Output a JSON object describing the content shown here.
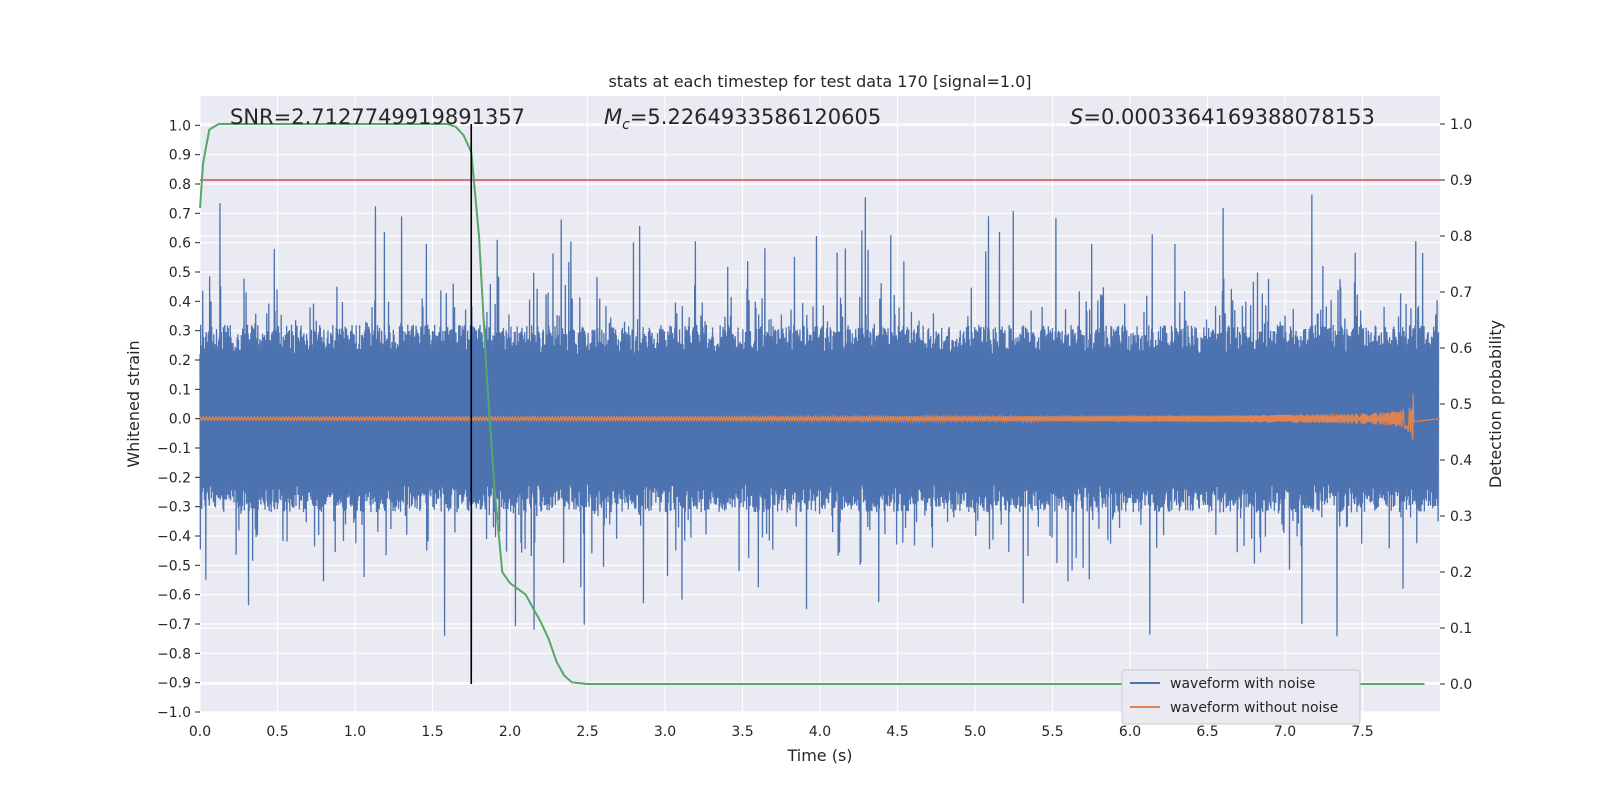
{
  "chart_data": {
    "type": "line",
    "title": "stats at each timestep for test data 170 [signal=1.0]",
    "xlabel": "Time (s)",
    "ylabel": "Whitened strain",
    "y2label": "Detection probability",
    "xlim": [
      0.0,
      8.0
    ],
    "ylim": [
      -1.0,
      1.1
    ],
    "y2lim": [
      -0.05,
      1.05
    ],
    "grid": true,
    "legend_position": "bottom-right",
    "x_ticks": [
      "0.0",
      "0.5",
      "1.0",
      "1.5",
      "2.0",
      "2.5",
      "3.0",
      "3.5",
      "4.0",
      "4.5",
      "5.0",
      "5.5",
      "6.0",
      "6.5",
      "7.0",
      "7.5"
    ],
    "y_ticks": [
      "1.0",
      "0.9",
      "0.8",
      "0.7",
      "0.6",
      "0.5",
      "0.4",
      "0.3",
      "0.2",
      "0.1",
      "0.0",
      "−0.1",
      "−0.2",
      "−0.3",
      "−0.4",
      "−0.5",
      "−0.6",
      "−0.7",
      "−0.8",
      "−0.9",
      "−1.0"
    ],
    "y2_ticks": [
      "1.0",
      "0.9",
      "0.8",
      "0.7",
      "0.6",
      "0.5",
      "0.4",
      "0.3",
      "0.2",
      "0.1",
      "0.0"
    ],
    "annotations": {
      "snr": "SNR=2.7127749919891357",
      "mc": "=5.2264933586120605",
      "s": "=0.0003364169388078153"
    },
    "threshold_y2": 0.9,
    "marker_time": 1.75,
    "series": [
      {
        "name": "waveform with noise",
        "color": "#4c72b0",
        "noise_envelope": [
          -1.0,
          1.0
        ],
        "end_time": 7.99
      },
      {
        "name": "waveform without noise",
        "color": "#dd8452",
        "start_amplitude": 0.006,
        "peak_amplitude": 0.1,
        "peak_time": 7.83,
        "end_time": 7.83
      },
      {
        "color": "#55a868",
        "axis": "y2",
        "x": [
          0.0,
          0.02,
          0.06,
          0.12,
          0.3,
          0.6,
          1.0,
          1.4,
          1.6,
          1.65,
          1.7,
          1.75,
          1.8,
          1.85,
          1.9,
          1.95,
          2.0,
          2.1,
          2.2,
          2.25,
          2.3,
          2.35,
          2.4,
          2.5,
          3.0,
          7.9
        ],
        "y": [
          0.85,
          0.93,
          0.99,
          1.0,
          1.0,
          1.0,
          1.0,
          1.0,
          1.0,
          0.995,
          0.98,
          0.95,
          0.8,
          0.55,
          0.35,
          0.2,
          0.18,
          0.16,
          0.11,
          0.08,
          0.04,
          0.015,
          0.003,
          0.0,
          0.0,
          0.0
        ]
      }
    ]
  }
}
